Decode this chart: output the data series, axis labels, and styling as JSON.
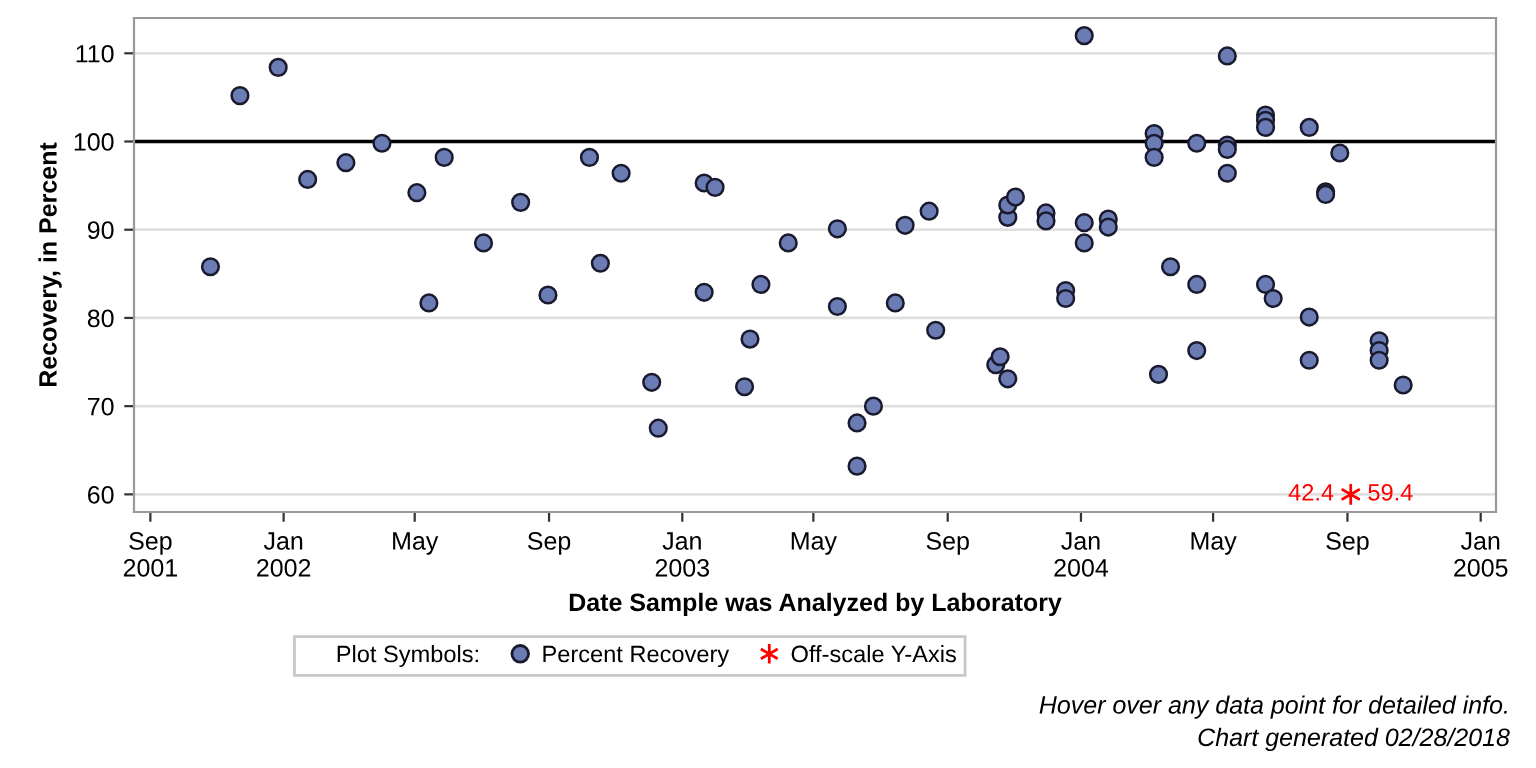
{
  "chart_data": {
    "type": "scatter",
    "xlabel": "Date Sample was Analyzed by Laboratory",
    "ylabel": "Recovery, in Percent",
    "legend_title": "Plot Symbols:",
    "legend": "bottom",
    "grid": "y",
    "xlim": [
      "2001-08-17",
      "2005-01-15"
    ],
    "xticks": [
      {
        "value": "2001-09-01",
        "label": "Sep\n2001"
      },
      {
        "value": "2002-01-01",
        "label": "Jan\n2002"
      },
      {
        "value": "2002-05-01",
        "label": "May"
      },
      {
        "value": "2002-09-01",
        "label": "Sep"
      },
      {
        "value": "2003-01-01",
        "label": "Jan\n2003"
      },
      {
        "value": "2003-05-01",
        "label": "May"
      },
      {
        "value": "2003-09-01",
        "label": "Sep"
      },
      {
        "value": "2004-01-01",
        "label": "Jan\n2004"
      },
      {
        "value": "2004-05-01",
        "label": "May"
      },
      {
        "value": "2004-09-01",
        "label": "Sep"
      },
      {
        "value": "2005-01-01",
        "label": "Jan\n2005"
      }
    ],
    "ylim": [
      58,
      114
    ],
    "yticks": [
      60,
      70,
      80,
      90,
      100,
      110
    ],
    "ref_lines": [
      {
        "axis": "y",
        "value": 100,
        "color": "#000000"
      }
    ],
    "series": [
      {
        "name": "Percent Recovery",
        "color": "#6b7cb5",
        "marker": "circle",
        "x": [
          "2001-10-26",
          "2001-11-22",
          "2001-12-27",
          "2002-01-23",
          "2002-02-27",
          "2002-04-01",
          "2002-05-03",
          "2002-05-14",
          "2002-05-28",
          "2002-07-03",
          "2002-08-06",
          "2002-08-31",
          "2002-10-08",
          "2002-10-18",
          "2002-11-06",
          "2002-12-04",
          "2002-12-10",
          "2003-01-21",
          "2003-01-31",
          "2003-01-21",
          "2003-02-27",
          "2003-03-04",
          "2003-03-14",
          "2003-04-08",
          "2003-05-23",
          "2003-05-23",
          "2003-06-10",
          "2003-06-10",
          "2003-06-25",
          "2003-07-15",
          "2003-07-24",
          "2003-08-15",
          "2003-08-21",
          "2003-10-15",
          "2003-10-19",
          "2003-10-26",
          "2003-10-26",
          "2003-10-26",
          "2003-11-02",
          "2003-11-30",
          "2003-11-30",
          "2003-12-18",
          "2003-12-18",
          "2004-01-04",
          "2004-01-04",
          "2004-01-04",
          "2004-01-26",
          "2004-01-26",
          "2004-03-08",
          "2004-03-08",
          "2004-03-08",
          "2004-03-12",
          "2004-03-23",
          "2004-04-16",
          "2004-04-16",
          "2004-04-16",
          "2004-05-14",
          "2004-05-14",
          "2004-05-14",
          "2004-05-14",
          "2004-06-18",
          "2004-06-18",
          "2004-06-18",
          "2004-06-18",
          "2004-06-25",
          "2004-07-28",
          "2004-07-28",
          "2004-07-28",
          "2004-08-12",
          "2004-08-12",
          "2004-08-25",
          "2004-09-30",
          "2004-09-30",
          "2004-09-30",
          "2004-10-22"
        ],
        "values": [
          85.8,
          105.2,
          108.4,
          95.7,
          97.6,
          99.8,
          94.2,
          81.7,
          98.2,
          88.5,
          93.1,
          82.6,
          98.2,
          86.2,
          96.4,
          72.7,
          67.5,
          95.3,
          94.8,
          82.9,
          72.2,
          77.6,
          83.8,
          88.5,
          90.1,
          81.3,
          68.1,
          63.2,
          70.0,
          81.7,
          90.5,
          92.1,
          78.6,
          74.7,
          75.6,
          73.1,
          91.4,
          92.8,
          93.7,
          91.9,
          91.0,
          83.1,
          82.2,
          112.0,
          90.8,
          88.5,
          91.2,
          90.3,
          100.9,
          99.8,
          98.2,
          73.6,
          85.8,
          99.8,
          83.8,
          76.3,
          109.7,
          99.6,
          99.1,
          96.4,
          103.0,
          102.4,
          101.6,
          83.8,
          82.2,
          101.6,
          80.1,
          75.2,
          94.3,
          94.0,
          98.7,
          77.4,
          76.3,
          75.2,
          72.4
        ]
      },
      {
        "name": "Off-scale Y-Axis",
        "color": "#ff0000",
        "marker": "cross",
        "x": [
          "2004-09-04"
        ],
        "values": [
          60
        ]
      }
    ],
    "annotations": [
      {
        "text": "42.4",
        "x": "2004-09-04",
        "y": 60
      },
      {
        "text": "59.4",
        "x": "2004-09-04",
        "y": 60
      },
      "Hover over any data point for detailed info.\nChart generated 02/28/2018"
    ]
  }
}
